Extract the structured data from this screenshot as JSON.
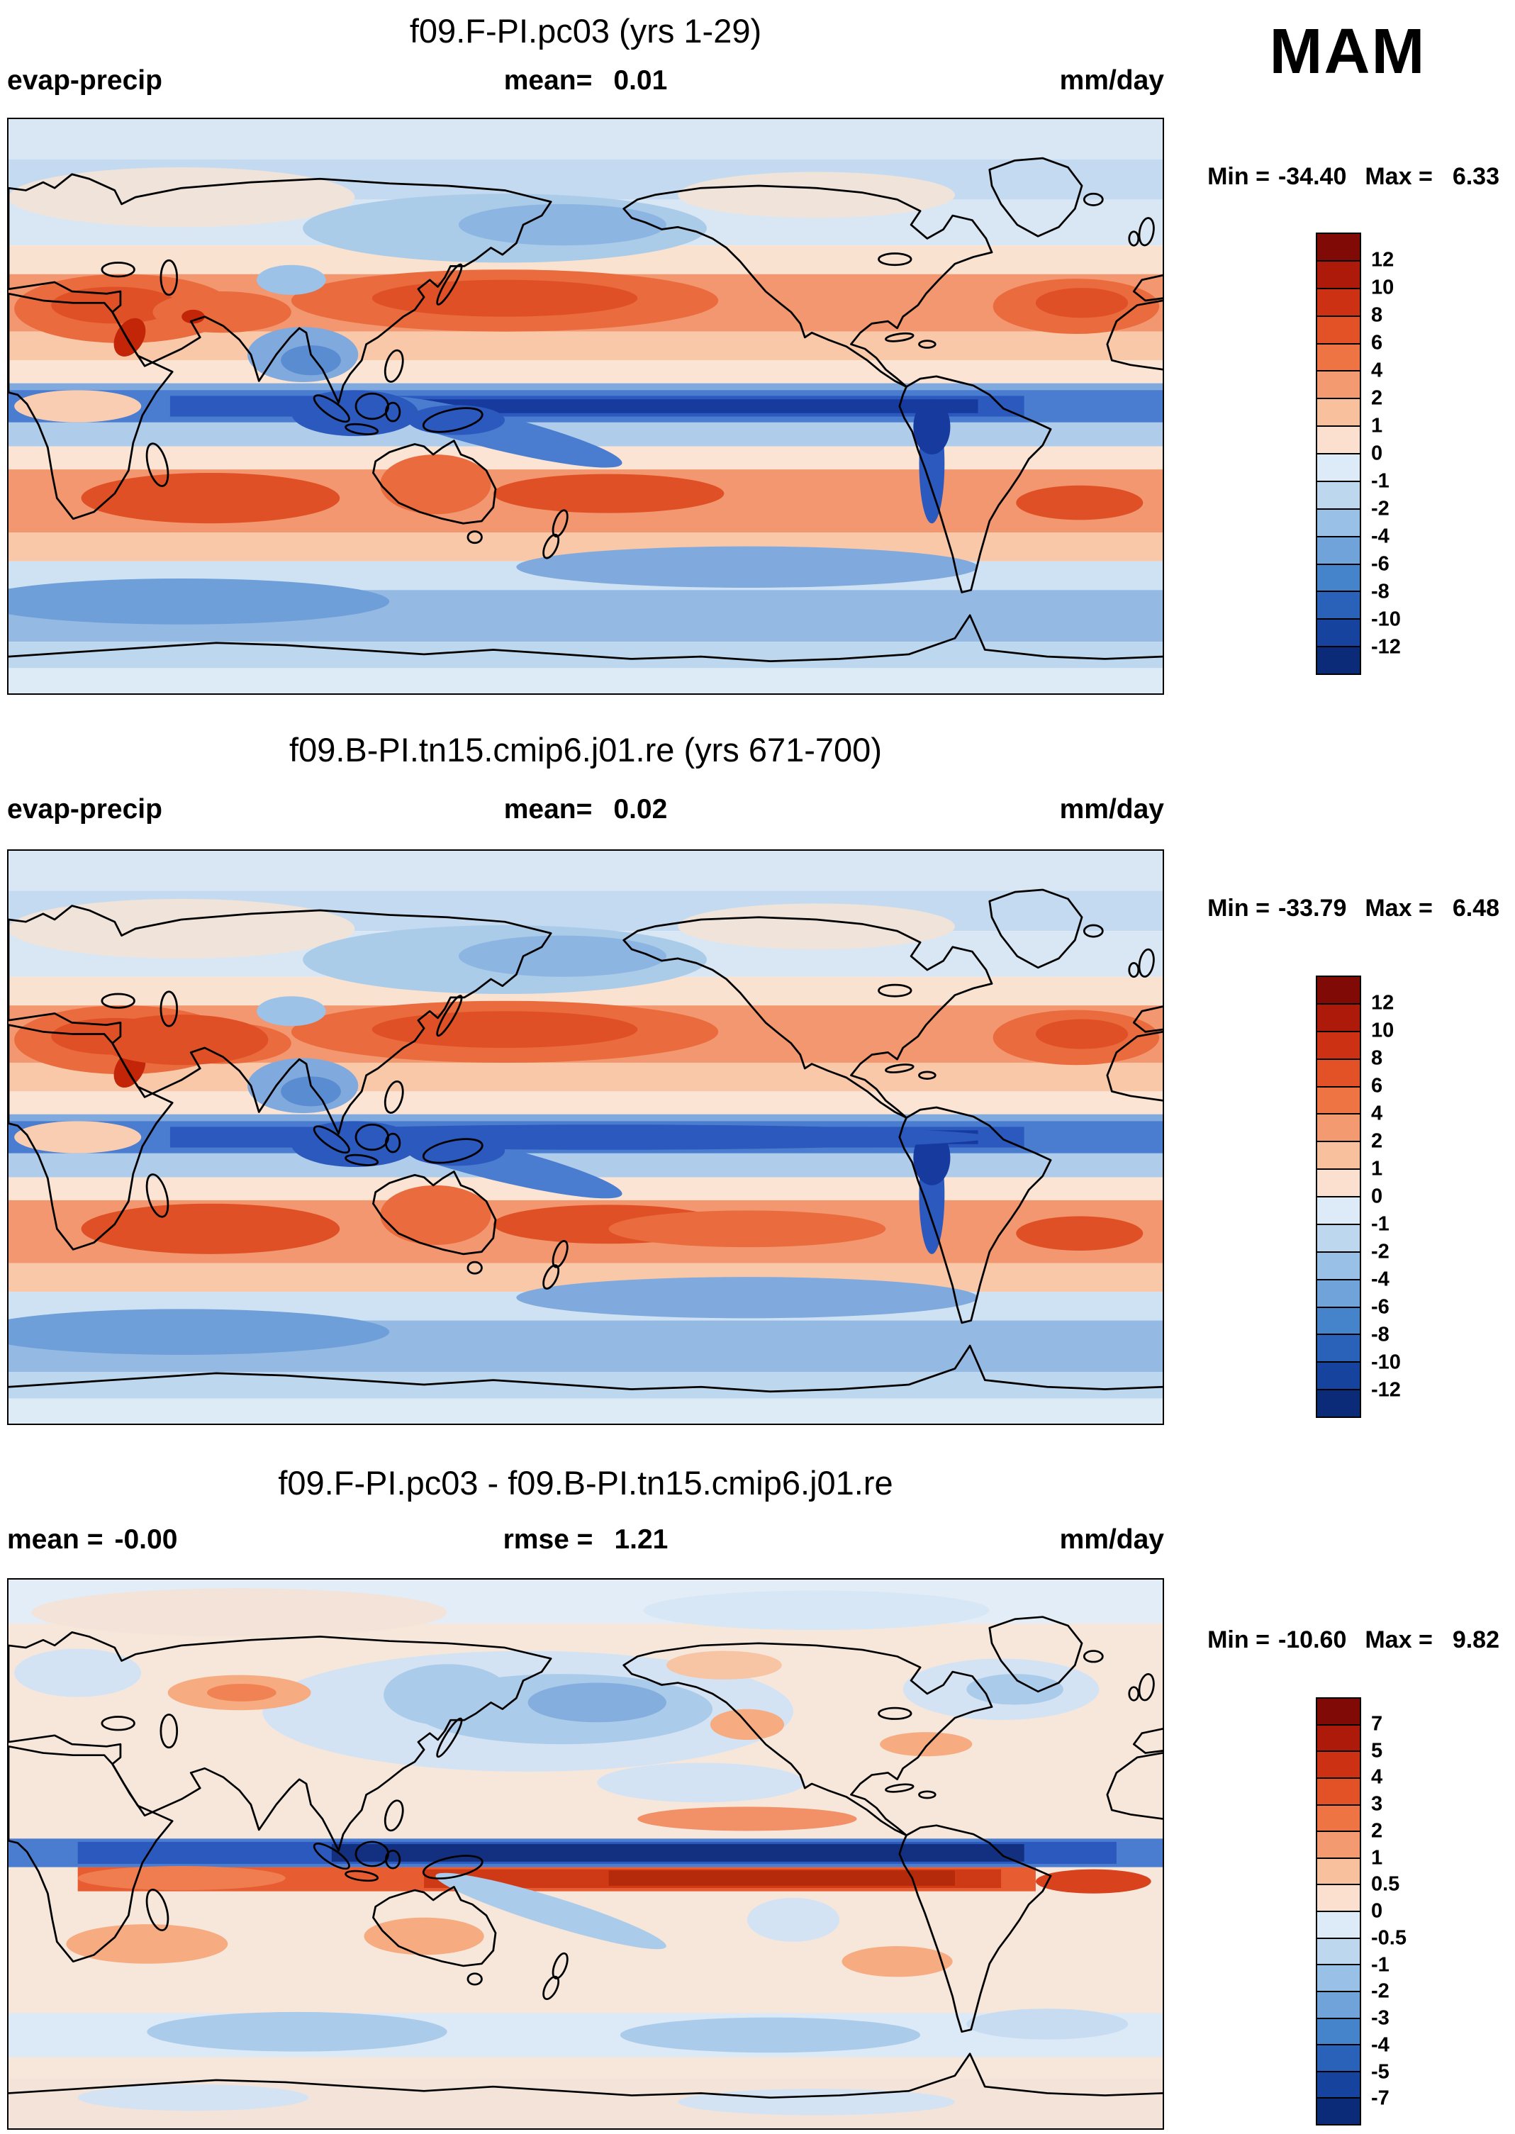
{
  "figure": {
    "season_label": "MAM"
  },
  "panels": [
    {
      "title": "f09.F-PI.pc03 (yrs 1-29)",
      "left_label": "evap-precip",
      "left_value": "",
      "center_label": "mean=",
      "center_value": "0.01",
      "units": "mm/day",
      "min_label": "Min =",
      "min_value": "-34.40",
      "max_label": "Max =",
      "max_value": "6.33"
    },
    {
      "title": "f09.B-PI.tn15.cmip6.j01.re (yrs 671-700)",
      "left_label": "evap-precip",
      "left_value": "",
      "center_label": "mean=",
      "center_value": "0.02",
      "units": "mm/day",
      "min_label": "Min =",
      "min_value": "-33.79",
      "max_label": "Max =",
      "max_value": "6.48"
    },
    {
      "title": "f09.F-PI.pc03 - f09.B-PI.tn15.cmip6.j01.re",
      "left_label": "mean =",
      "left_value": "-0.00",
      "center_label": "rmse =",
      "center_value": "1.21",
      "units": "mm/day",
      "min_label": "Min =",
      "min_value": "-10.60",
      "max_label": "Max =",
      "max_value": "9.82"
    }
  ],
  "colorbars": [
    {
      "labels": [
        "12",
        "10",
        "8",
        "6",
        "4",
        "2",
        "1",
        "0",
        "-1",
        "-2",
        "-4",
        "-6",
        "-8",
        "-10",
        "-12"
      ],
      "colors": [
        "#7f0a06",
        "#ad1a0a",
        "#cc3114",
        "#e35226",
        "#ee7444",
        "#f49a70",
        "#f8c09c",
        "#fbe0d0",
        "#dcebf7",
        "#bcd7ee",
        "#99c0e6",
        "#6fa3d9",
        "#4583cb",
        "#2a62ba",
        "#16439e",
        "#0b2a78"
      ]
    },
    {
      "labels": [
        "12",
        "10",
        "8",
        "6",
        "4",
        "2",
        "1",
        "0",
        "-1",
        "-2",
        "-4",
        "-6",
        "-8",
        "-10",
        "-12"
      ],
      "colors": [
        "#7f0a06",
        "#ad1a0a",
        "#cc3114",
        "#e35226",
        "#ee7444",
        "#f49a70",
        "#f8c09c",
        "#fbe0d0",
        "#dcebf7",
        "#bcd7ee",
        "#99c0e6",
        "#6fa3d9",
        "#4583cb",
        "#2a62ba",
        "#16439e",
        "#0b2a78"
      ]
    },
    {
      "labels": [
        "7",
        "5",
        "4",
        "3",
        "2",
        "1",
        "0.5",
        "0",
        "-0.5",
        "-1",
        "-2",
        "-3",
        "-4",
        "-5",
        "-7"
      ],
      "colors": [
        "#7f0a06",
        "#ad1a0a",
        "#cc3114",
        "#e35226",
        "#ee7444",
        "#f49a70",
        "#f8c09c",
        "#fbe0d0",
        "#dcebf7",
        "#bcd7ee",
        "#99c0e6",
        "#6fa3d9",
        "#4583cb",
        "#2a62ba",
        "#16439e",
        "#0b2a78"
      ]
    }
  ],
  "chart_data": [
    {
      "type": "heatmap",
      "panel": "top",
      "title": "f09.F-PI.pc03 (yrs 1-29)",
      "variable": "evap-precip",
      "season": "MAM",
      "units": "mm/day",
      "stats": {
        "mean": 0.01,
        "min": -34.4,
        "max": 6.33
      },
      "contour_levels": [
        -12,
        -10,
        -8,
        -6,
        -4,
        -2,
        -1,
        0,
        1,
        2,
        4,
        6,
        8,
        10,
        12
      ],
      "domain": {
        "lon": [
          0,
          360
        ],
        "lat": [
          -90,
          90
        ]
      },
      "legend_position": "right",
      "features": [
        "dark blue ITCZ band (values below -8 mm/day) along the equator across the Pacific and Atlantic",
        "orange subtropical evaporation maxima (4-8 mm/day) near 15-30 deg in both hemispheres and all basins",
        "blue mid-latitude belts (-2 to -6 mm/day) around 40-60N and 40-60S",
        "pale near-zero values over polar caps and most land areas"
      ]
    },
    {
      "type": "heatmap",
      "panel": "middle",
      "title": "f09.B-PI.tn15.cmip6.j01.re (yrs 671-700)",
      "variable": "evap-precip",
      "season": "MAM",
      "units": "mm/day",
      "stats": {
        "mean": 0.02,
        "min": -33.79,
        "max": 6.48
      },
      "contour_levels": [
        -12,
        -10,
        -8,
        -6,
        -4,
        -2,
        -1,
        0,
        1,
        2,
        4,
        6,
        8,
        10,
        12
      ],
      "domain": {
        "lon": [
          0,
          360
        ],
        "lat": [
          -90,
          90
        ]
      },
      "legend_position": "right",
      "features": [
        "same overall pattern as top panel",
        "dark blue equatorial ITCZ band and orange subtropical maxima",
        "blue mid-latitude and Southern Ocean belts"
      ]
    },
    {
      "type": "heatmap",
      "panel": "bottom-difference",
      "title": "f09.F-PI.pc03 - f09.B-PI.tn15.cmip6.j01.re",
      "variable": "evap-precip difference",
      "season": "MAM",
      "units": "mm/day",
      "stats": {
        "mean": -0.0,
        "rmse": 1.21,
        "min": -10.6,
        "max": 9.82
      },
      "contour_levels": [
        -7,
        -5,
        -4,
        -3,
        -2,
        -1,
        -0.5,
        0,
        0.5,
        1,
        2,
        3,
        4,
        5,
        7
      ],
      "domain": {
        "lon": [
          0,
          360
        ],
        "lat": [
          -90,
          90
        ]
      },
      "legend_position": "right",
      "features": [
        "narrow dark blue negative band (below -5 mm/day) just north of the equator across the Pacific and Atlantic",
        "narrow red positive band (2-7 mm/day) immediately south of it, an ITCZ displacement dipole",
        "mostly weak pale differences (within +/-1 mm/day) elsewhere with light blue patches in the North Pacific"
      ]
    }
  ]
}
